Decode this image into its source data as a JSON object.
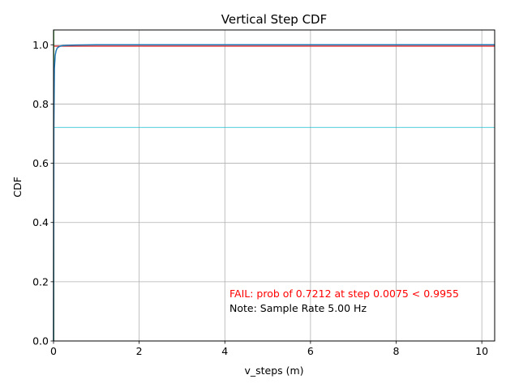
{
  "chart_data": {
    "type": "line",
    "title": "Vertical Step CDF",
    "xlabel": "v_steps (m)",
    "ylabel": "CDF",
    "xlim": [
      0,
      10.3
    ],
    "ylim": [
      0,
      1.05
    ],
    "x_ticks": [
      0,
      2,
      4,
      6,
      8,
      10
    ],
    "y_ticks": [
      0.0,
      0.2,
      0.4,
      0.6,
      0.8,
      1.0
    ],
    "x_tick_labels": [
      "0",
      "2",
      "4",
      "6",
      "8",
      "10"
    ],
    "y_tick_labels": [
      "0.0",
      "0.2",
      "0.4",
      "0.6",
      "0.8",
      "1.0"
    ],
    "grid": true,
    "series": [
      {
        "color": "#1f77b4",
        "x": [
          0,
          0.0075,
          0.02,
          0.04,
          0.06,
          0.08,
          0.1,
          0.15,
          0.2,
          0.3,
          0.5,
          1.0,
          10.3
        ],
        "y": [
          0,
          0.7212,
          0.92,
          0.965,
          0.98,
          0.987,
          0.991,
          0.995,
          0.997,
          0.998,
          0.999,
          1.0,
          1.0
        ]
      }
    ],
    "reference_lines": [
      {
        "orientation": "horizontal",
        "y": 0.9955,
        "color": "#d62728"
      },
      {
        "orientation": "horizontal",
        "y": 0.7212,
        "color": "#17becf"
      },
      {
        "orientation": "vertical",
        "x": 0.0075,
        "color": "#2ca02c"
      }
    ],
    "annotations": [
      {
        "text": "FAIL: prob of 0.7212 at step 0.0075 < 0.9955",
        "color": "#ff0000"
      },
      {
        "text": "Note: Sample Rate 5.00 Hz",
        "color": "#000000"
      }
    ]
  }
}
